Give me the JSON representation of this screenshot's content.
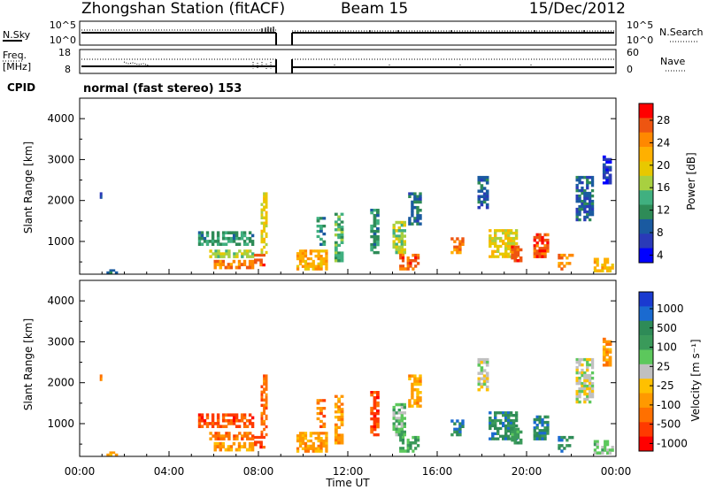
{
  "header": {
    "station": "Zhongshan Station (fitACF)",
    "beam": "Beam 15",
    "date": "15/Dec/2012"
  },
  "strip_nsky": {
    "left_label": "N.Sky",
    "left_ticks": [
      "10^5",
      "10^0"
    ],
    "right_ticks": [
      "10^5",
      "10^0"
    ],
    "right_label": "N.Search"
  },
  "strip_freq": {
    "left_label_1": "Freq.",
    "left_label_2": "[MHz]",
    "left_ticks": [
      "18",
      "8"
    ],
    "right_ticks": [
      "60",
      "0"
    ],
    "right_label": "Nave"
  },
  "cpid": {
    "label": "CPID",
    "value": "normal (fast stereo) 153"
  },
  "chart_data": [
    {
      "type": "heatmap",
      "name": "power",
      "ylabel": "Slant Range [km]",
      "ylim": [
        200,
        4500
      ],
      "yticks": [
        1000,
        2000,
        3000,
        4000
      ],
      "xlim": [
        0,
        24
      ],
      "colorbar": {
        "label": "Power [dB]",
        "tick_labels": [
          "28",
          "24",
          "20",
          "16",
          "12",
          "8",
          "4"
        ],
        "colors": [
          "#ff0000",
          "#ee5511",
          "#ff8800",
          "#ffb000",
          "#e8c800",
          "#a8d040",
          "#40b080",
          "#2e8b57",
          "#1a5aa0",
          "#2a3ab8",
          "#0000ff"
        ]
      },
      "echo_regions": [
        {
          "t0": 0.9,
          "t1": 1.0,
          "r0": 2050,
          "r1": 2200,
          "c": 9
        },
        {
          "t0": 1.2,
          "t1": 1.7,
          "r0": 220,
          "r1": 320,
          "c": 8
        },
        {
          "t0": 5.3,
          "t1": 7.8,
          "r0": 900,
          "r1": 1250,
          "c": 7
        },
        {
          "t0": 5.8,
          "t1": 7.8,
          "r0": 600,
          "r1": 800,
          "c": 5
        },
        {
          "t0": 6.0,
          "t1": 7.8,
          "r0": 330,
          "r1": 550,
          "c": 2
        },
        {
          "t0": 7.8,
          "t1": 8.3,
          "r0": 400,
          "r1": 700,
          "c": 1
        },
        {
          "t0": 8.1,
          "t1": 8.4,
          "r0": 700,
          "r1": 2200,
          "c": 4
        },
        {
          "t0": 9.7,
          "t1": 11.1,
          "r0": 300,
          "r1": 800,
          "c": 3
        },
        {
          "t0": 10.6,
          "t1": 11.0,
          "r0": 900,
          "r1": 1600,
          "c": 7
        },
        {
          "t0": 11.4,
          "t1": 11.8,
          "r0": 500,
          "r1": 1700,
          "c": 6
        },
        {
          "t0": 13.0,
          "t1": 13.4,
          "r0": 700,
          "r1": 1800,
          "c": 7
        },
        {
          "t0": 14.0,
          "t1": 14.6,
          "r0": 700,
          "r1": 1500,
          "c": 5
        },
        {
          "t0": 14.3,
          "t1": 15.2,
          "r0": 300,
          "r1": 700,
          "c": 1
        },
        {
          "t0": 14.7,
          "t1": 15.3,
          "r0": 1400,
          "r1": 2200,
          "c": 8
        },
        {
          "t0": 16.6,
          "t1": 17.2,
          "r0": 700,
          "r1": 1100,
          "c": 2
        },
        {
          "t0": 17.8,
          "t1": 18.3,
          "r0": 1800,
          "r1": 2600,
          "c": 8
        },
        {
          "t0": 18.3,
          "t1": 19.6,
          "r0": 600,
          "r1": 1300,
          "c": 4
        },
        {
          "t0": 19.3,
          "t1": 19.8,
          "r0": 500,
          "r1": 900,
          "c": 1
        },
        {
          "t0": 20.3,
          "t1": 21.0,
          "r0": 600,
          "r1": 1200,
          "c": 1
        },
        {
          "t0": 21.4,
          "t1": 22.1,
          "r0": 300,
          "r1": 700,
          "c": 2
        },
        {
          "t0": 22.2,
          "t1": 23.0,
          "r0": 1500,
          "r1": 2600,
          "c": 8
        },
        {
          "t0": 23.4,
          "t1": 23.8,
          "r0": 2400,
          "r1": 3100,
          "c": 9
        },
        {
          "t0": 23.0,
          "t1": 23.9,
          "r0": 250,
          "r1": 600,
          "c": 3
        }
      ]
    },
    {
      "type": "heatmap",
      "name": "velocity",
      "ylabel": "Slant Range [km]",
      "xlabel": "Time UT",
      "ylim": [
        200,
        4500
      ],
      "yticks": [
        1000,
        2000,
        3000,
        4000
      ],
      "xlim": [
        0,
        24
      ],
      "x_tick_labels": [
        "00:00",
        "04:00",
        "08:00",
        "12:00",
        "16:00",
        "20:00",
        "00:00"
      ],
      "colorbar": {
        "label": "Velocity [m s⁻¹]",
        "tick_labels": [
          "1000",
          "500",
          "100",
          "25",
          "-25",
          "-100",
          "-500",
          "-1000"
        ],
        "colors": [
          "#1a3ad0",
          "#1a6ad0",
          "#2e8b57",
          "#3a9a5a",
          "#5cc85c",
          "#c0c0c0",
          "#ffc000",
          "#ff9900",
          "#ff7000",
          "#ff3a00",
          "#ff0000"
        ]
      },
      "echo_regions": [
        {
          "t0": 0.9,
          "t1": 1.0,
          "r0": 2050,
          "r1": 2200,
          "c": 8
        },
        {
          "t0": 1.2,
          "t1": 1.7,
          "r0": 220,
          "r1": 320,
          "c": 7
        },
        {
          "t0": 5.3,
          "t1": 7.8,
          "r0": 900,
          "r1": 1250,
          "c": 9
        },
        {
          "t0": 5.8,
          "t1": 7.8,
          "r0": 600,
          "r1": 800,
          "c": 8
        },
        {
          "t0": 6.0,
          "t1": 7.8,
          "r0": 330,
          "r1": 550,
          "c": 7
        },
        {
          "t0": 7.8,
          "t1": 8.3,
          "r0": 400,
          "r1": 700,
          "c": 9
        },
        {
          "t0": 8.1,
          "t1": 8.4,
          "r0": 700,
          "r1": 2200,
          "c": 8
        },
        {
          "t0": 9.7,
          "t1": 11.1,
          "r0": 300,
          "r1": 800,
          "c": 7
        },
        {
          "t0": 10.6,
          "t1": 11.0,
          "r0": 900,
          "r1": 1600,
          "c": 8
        },
        {
          "t0": 11.4,
          "t1": 11.8,
          "r0": 500,
          "r1": 1700,
          "c": 7
        },
        {
          "t0": 13.0,
          "t1": 13.4,
          "r0": 700,
          "r1": 1800,
          "c": 9
        },
        {
          "t0": 14.0,
          "t1": 14.6,
          "r0": 700,
          "r1": 1500,
          "c": 4
        },
        {
          "t0": 14.3,
          "t1": 15.2,
          "r0": 300,
          "r1": 700,
          "c": 3
        },
        {
          "t0": 14.7,
          "t1": 15.3,
          "r0": 1400,
          "r1": 2200,
          "c": 7
        },
        {
          "t0": 16.6,
          "t1": 17.2,
          "r0": 700,
          "r1": 1100,
          "c": 2
        },
        {
          "t0": 17.8,
          "t1": 18.3,
          "r0": 1800,
          "r1": 2600,
          "c": 5
        },
        {
          "t0": 18.3,
          "t1": 19.6,
          "r0": 600,
          "r1": 1300,
          "c": 2
        },
        {
          "t0": 19.3,
          "t1": 19.8,
          "r0": 500,
          "r1": 900,
          "c": 3
        },
        {
          "t0": 20.3,
          "t1": 21.0,
          "r0": 600,
          "r1": 1200,
          "c": 2
        },
        {
          "t0": 21.4,
          "t1": 22.1,
          "r0": 300,
          "r1": 700,
          "c": 2
        },
        {
          "t0": 22.2,
          "t1": 23.0,
          "r0": 1500,
          "r1": 2600,
          "c": 5
        },
        {
          "t0": 23.4,
          "t1": 23.8,
          "r0": 2400,
          "r1": 3100,
          "c": 7
        },
        {
          "t0": 23.0,
          "t1": 23.9,
          "r0": 250,
          "r1": 600,
          "c": 4
        }
      ]
    }
  ]
}
